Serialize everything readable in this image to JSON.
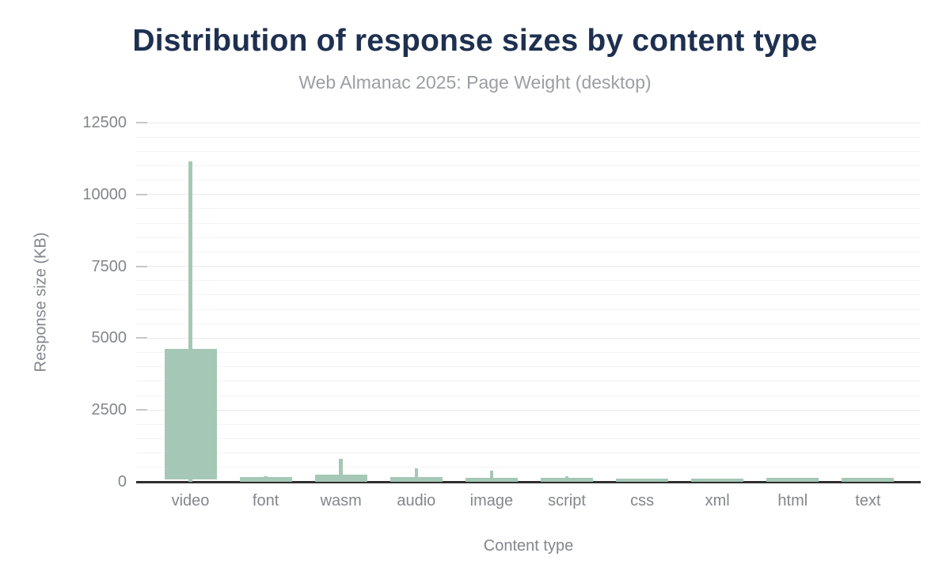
{
  "header": {
    "title": "Distribution of response sizes by content type",
    "subtitle": "Web Almanac 2025: Page Weight (desktop)"
  },
  "chart_data": {
    "type": "boxplot",
    "title": "Distribution of response sizes by content type",
    "subtitle": "Web Almanac 2025: Page Weight (desktop)",
    "xlabel": "Content type",
    "ylabel": "Response size (KB)",
    "units": "KB",
    "categories": [
      "video",
      "font",
      "wasm",
      "audio",
      "image",
      "script",
      "css",
      "xml",
      "html",
      "text"
    ],
    "boxes": [
      {
        "category": "video",
        "whisker_low": 0,
        "box_low": 85,
        "box_high": 4620,
        "whisker_high": 11150
      },
      {
        "category": "font",
        "whisker_low": 0,
        "box_low": 0,
        "box_high": 160,
        "whisker_high": 200
      },
      {
        "category": "wasm",
        "whisker_low": 0,
        "box_low": 0,
        "box_high": 250,
        "whisker_high": 800
      },
      {
        "category": "audio",
        "whisker_low": 0,
        "box_low": 0,
        "box_high": 155,
        "whisker_high": 460
      },
      {
        "category": "image",
        "whisker_low": 0,
        "box_low": 0,
        "box_high": 140,
        "whisker_high": 390
      },
      {
        "category": "script",
        "whisker_low": 0,
        "box_low": 0,
        "box_high": 130,
        "whisker_high": 200
      },
      {
        "category": "css",
        "whisker_low": 0,
        "box_low": 0,
        "box_high": 110,
        "whisker_high": 110
      },
      {
        "category": "xml",
        "whisker_low": 0,
        "box_low": 0,
        "box_high": 110,
        "whisker_high": 110
      },
      {
        "category": "html",
        "whisker_low": 0,
        "box_low": 0,
        "box_high": 130,
        "whisker_high": 130
      },
      {
        "category": "text",
        "whisker_low": 0,
        "box_low": 0,
        "box_high": 125,
        "whisker_high": 125
      }
    ],
    "ylim": [
      0,
      12500
    ],
    "yticks": [
      0,
      2500,
      5000,
      7500,
      10000,
      12500
    ],
    "minor_grid_step": 500,
    "grid": "horizontal",
    "legend": "none",
    "colors": {
      "box_fill": "#a5c8b6",
      "title": "#1e3050",
      "subtitle": "#9b9ea4",
      "axis_text": "#83868d",
      "axis_line": "#2f2f2f",
      "grid_major": "#e9e9e9",
      "grid_minor": "#f4f4f4",
      "tick": "#c7c7c7",
      "background": "#ffffff"
    }
  }
}
